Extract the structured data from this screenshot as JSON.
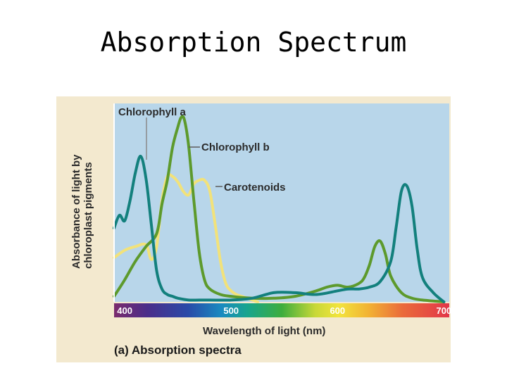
{
  "slide": {
    "title": "Absorption Spectrum"
  },
  "chart_data": {
    "type": "line",
    "xlabel": "Wavelength of light (nm)",
    "ylabel_line1": "Absorbance of light by",
    "ylabel_line2": "chloroplast pigments",
    "caption": "(a) Absorption spectra",
    "xlim": [
      390,
      705
    ],
    "ylim": [
      0,
      1
    ],
    "xticks": [
      400,
      500,
      600,
      700
    ],
    "xtick_labels": [
      "400",
      "500",
      "600",
      "700"
    ],
    "series": [
      {
        "name": "Chlorophyll a",
        "color": "#13807d",
        "x": [
          390,
          395,
          400,
          405,
          410,
          415,
          420,
          425,
          430,
          435,
          440,
          445,
          450,
          460,
          470,
          480,
          500,
          520,
          540,
          560,
          580,
          600,
          610,
          620,
          630,
          640,
          650,
          655,
          660,
          665,
          670,
          675,
          680,
          690,
          700
        ],
        "y": [
          0.4,
          0.47,
          0.44,
          0.55,
          0.7,
          0.79,
          0.67,
          0.42,
          0.17,
          0.07,
          0.04,
          0.03,
          0.02,
          0.01,
          0.01,
          0.01,
          0.01,
          0.02,
          0.05,
          0.05,
          0.04,
          0.06,
          0.07,
          0.07,
          0.08,
          0.11,
          0.22,
          0.4,
          0.6,
          0.63,
          0.52,
          0.28,
          0.13,
          0.05,
          0.0
        ]
      },
      {
        "name": "Chlorophyll b",
        "color": "#5d9a2c",
        "x": [
          390,
          400,
          410,
          420,
          430,
          435,
          440,
          445,
          450,
          453,
          456,
          460,
          465,
          470,
          475,
          480,
          490,
          500,
          520,
          540,
          560,
          580,
          590,
          600,
          610,
          620,
          625,
          630,
          635,
          640,
          645,
          650,
          660,
          670,
          680,
          700
        ],
        "y": [
          0.03,
          0.12,
          0.22,
          0.3,
          0.37,
          0.53,
          0.66,
          0.84,
          0.95,
          1.0,
          0.99,
          0.85,
          0.55,
          0.27,
          0.12,
          0.07,
          0.04,
          0.03,
          0.02,
          0.02,
          0.03,
          0.06,
          0.08,
          0.09,
          0.08,
          0.1,
          0.13,
          0.2,
          0.3,
          0.33,
          0.26,
          0.14,
          0.05,
          0.02,
          0.01,
          0.0
        ]
      },
      {
        "name": "Carotenoids",
        "color": "#f2e27a",
        "x": [
          390,
          400,
          410,
          420,
          425,
          430,
          435,
          440,
          445,
          450,
          455,
          460,
          465,
          470,
          475,
          480,
          485,
          490,
          495,
          500,
          505,
          510,
          515,
          520,
          525
        ],
        "y": [
          0.24,
          0.28,
          0.3,
          0.31,
          0.23,
          0.3,
          0.55,
          0.68,
          0.68,
          0.65,
          0.6,
          0.58,
          0.64,
          0.66,
          0.66,
          0.6,
          0.42,
          0.22,
          0.1,
          0.06,
          0.04,
          0.03,
          0.02,
          0.01,
          0.0
        ]
      }
    ]
  }
}
